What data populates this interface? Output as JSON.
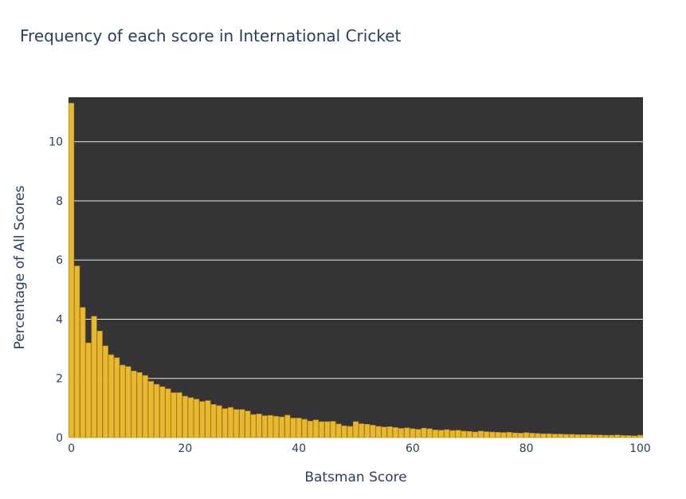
{
  "chart_data": {
    "type": "bar",
    "title": "Frequency of each score in International Cricket",
    "xlabel": "Batsman Score",
    "ylabel": "Percentage of All Scores",
    "xlim": [
      0,
      100
    ],
    "ylim": [
      0,
      11.5
    ],
    "xticks": [
      0,
      20,
      40,
      60,
      80,
      100
    ],
    "yticks": [
      0,
      2,
      4,
      6,
      8,
      10
    ],
    "grid": true,
    "colors": {
      "plot_background": "#353336",
      "bar_fill": "#e8b830",
      "bar_outline": "#b8891c",
      "grid": "#e8e8e8"
    },
    "x": [
      0,
      1,
      2,
      3,
      4,
      5,
      6,
      7,
      8,
      9,
      10,
      11,
      12,
      13,
      14,
      15,
      16,
      17,
      18,
      19,
      20,
      21,
      22,
      23,
      24,
      25,
      26,
      27,
      28,
      29,
      30,
      31,
      32,
      33,
      34,
      35,
      36,
      37,
      38,
      39,
      40,
      41,
      42,
      43,
      44,
      45,
      46,
      47,
      48,
      49,
      50,
      51,
      52,
      53,
      54,
      55,
      56,
      57,
      58,
      59,
      60,
      61,
      62,
      63,
      64,
      65,
      66,
      67,
      68,
      69,
      70,
      71,
      72,
      73,
      74,
      75,
      76,
      77,
      78,
      79,
      80,
      81,
      82,
      83,
      84,
      85,
      86,
      87,
      88,
      89,
      90,
      91,
      92,
      93,
      94,
      95,
      96,
      97,
      98,
      99,
      100
    ],
    "values": [
      11.3,
      5.8,
      4.4,
      3.2,
      4.1,
      3.6,
      3.1,
      2.8,
      2.7,
      2.45,
      2.4,
      2.25,
      2.2,
      2.1,
      1.9,
      1.8,
      1.72,
      1.65,
      1.52,
      1.52,
      1.4,
      1.35,
      1.3,
      1.22,
      1.25,
      1.12,
      1.08,
      0.98,
      1.02,
      0.95,
      0.95,
      0.9,
      0.78,
      0.8,
      0.74,
      0.75,
      0.72,
      0.7,
      0.76,
      0.66,
      0.66,
      0.62,
      0.56,
      0.6,
      0.54,
      0.54,
      0.55,
      0.46,
      0.4,
      0.38,
      0.54,
      0.47,
      0.45,
      0.42,
      0.38,
      0.36,
      0.37,
      0.34,
      0.31,
      0.33,
      0.3,
      0.28,
      0.32,
      0.3,
      0.26,
      0.25,
      0.27,
      0.24,
      0.25,
      0.22,
      0.21,
      0.19,
      0.22,
      0.2,
      0.19,
      0.18,
      0.17,
      0.18,
      0.16,
      0.15,
      0.17,
      0.15,
      0.14,
      0.13,
      0.13,
      0.12,
      0.12,
      0.11,
      0.11,
      0.1,
      0.1,
      0.1,
      0.09,
      0.09,
      0.08,
      0.08,
      0.09,
      0.07,
      0.07,
      0.06,
      0.08
    ]
  }
}
